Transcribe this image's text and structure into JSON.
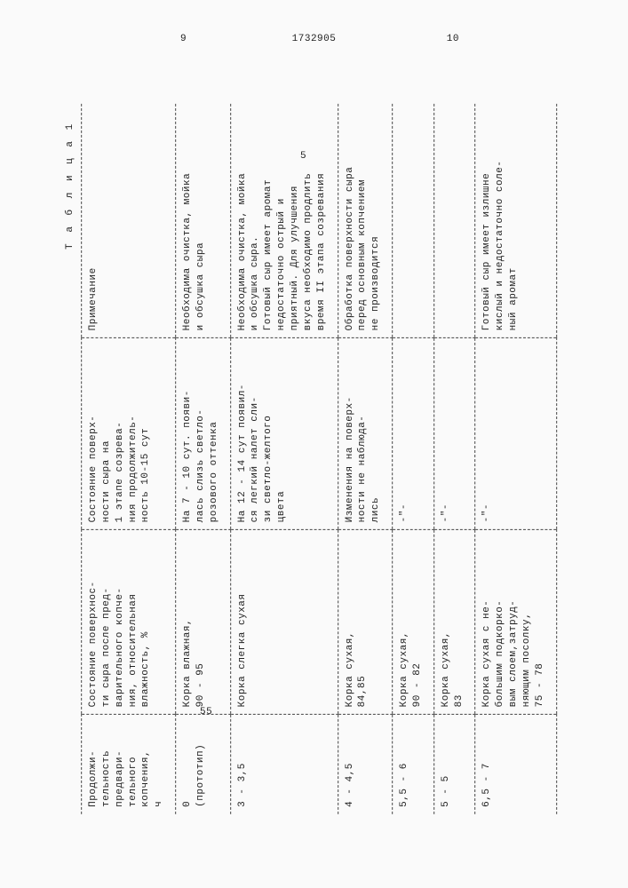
{
  "header": {
    "left_page": "9",
    "doc_number": "1732905",
    "right_page": "10"
  },
  "margins": {
    "five": "5",
    "fiftyfive": "55"
  },
  "table": {
    "caption": "Т а б л и ц а 1",
    "headers": {
      "c1": "Продолжи-\nтельность\nпредвари-\nтельного\nкопчения,\nч",
      "c2": "Состояние поверхнос-\nти сыра после пред-\nварительного копче-\nния, относительная\nвлажность, %",
      "c3": "Состояние поверх-\nности сыра на\n1 этапе созрева-\nния продолжитель-\nность 10-15 сут",
      "c4": "Примечание"
    },
    "rows": [
      {
        "c1": "0\n(прототип)",
        "c2": "Корка влажная,\n90 - 95",
        "c3": "На 7 - 10 сут. появи-\nлась слизь светло-\nрозового оттенка",
        "c4": "Необходима очистка, мойка\nи обсушка сыра"
      },
      {
        "c1": "3 - 3,5",
        "c2": "Корка слегка сухая",
        "c3": "На 12 - 14 сут появил-\nся легкий налет сли-\nзи светло-желтого\nцвета",
        "c4": "Необходима очистка, мойка\nи обсушка сыра.\nГотовый сыр имеет аромат\nнедостаточно острый и\nприятный. Для улучшения\nвкуса необходимо продлить\nвремя II этапа созревания"
      },
      {
        "c1": "4 - 4,5",
        "c2": "Корка сухая,\n84,85",
        "c3": "Изменения на поверх-\nности не наблюда-\nлись",
        "c4": "Обработка поверхности сыра\nперед основным копчением\nне производится"
      },
      {
        "c1": "5,5 - 6",
        "c2": "Корка сухая,\n90 - 82",
        "c3": "-\"-",
        "c4": ""
      },
      {
        "c1": "5 - 5",
        "c2": "Корка сухая,\n83",
        "c3": "-\"-",
        "c4": ""
      },
      {
        "c1": "6,5 - 7",
        "c2": "Корка сухая с не-\nбольшим подкорко-\nвым слоем,затруд-\nняющим посолку,\n75 - 78",
        "c3": "-\"-",
        "c4": "Готовый сыр имеет излишне\nкислый и недостаточно соле-\nный аромат"
      }
    ]
  }
}
